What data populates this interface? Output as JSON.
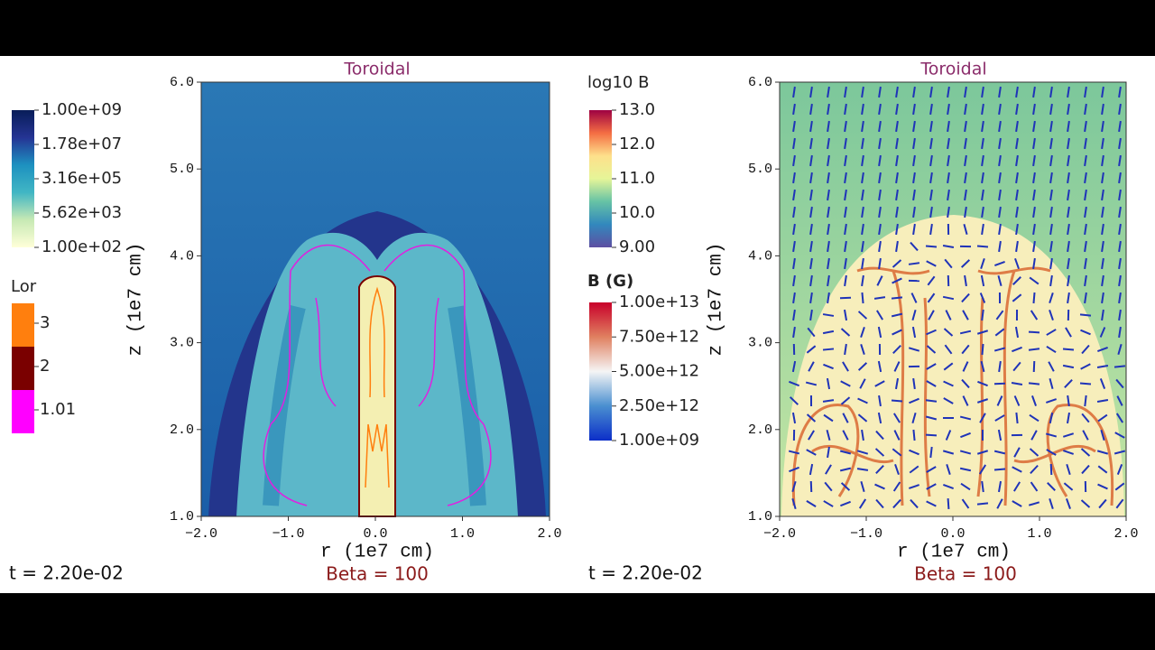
{
  "chart_data": [
    {
      "type": "heatmap",
      "title": "Toroidal",
      "subtitle": "Beta = 100",
      "time_label": "t = 2.20e-02",
      "x_label": "r (1e7 cm)",
      "y_label": "z (1e7 cm)",
      "xlim": [
        -2,
        2
      ],
      "ylim": [
        1,
        6
      ],
      "xticks": [
        {
          "value": -2,
          "label": "−2.0"
        },
        {
          "value": -1,
          "label": "−1.0"
        },
        {
          "value": 0,
          "label": "0.0"
        },
        {
          "value": 1,
          "label": "1.0"
        },
        {
          "value": 2,
          "label": "2.0"
        }
      ],
      "yticks": [
        {
          "value": 1,
          "label": "1.0"
        },
        {
          "value": 2,
          "label": "2.0"
        },
        {
          "value": 3,
          "label": "3.0"
        },
        {
          "value": 4,
          "label": "4.0"
        },
        {
          "value": 5,
          "label": "5.0"
        },
        {
          "value": 6,
          "label": "6.0"
        }
      ],
      "colorbars": [
        {
          "log": true,
          "lim": [
            100,
            1000000000
          ],
          "colors": [
            "#ffffd9",
            "#c7e9b4",
            "#41b6c4",
            "#1d91c0",
            "#253494",
            "#081d58"
          ],
          "ticks": [
            {
              "value": 1000000000,
              "label": "1.00e+09"
            },
            {
              "value": 17800000,
              "label": "1.78e+07"
            },
            {
              "value": 316000,
              "label": "3.16e+05"
            },
            {
              "value": 5620,
              "label": "5.62e+03"
            },
            {
              "value": 100,
              "label": "1.00e+02"
            }
          ]
        }
      ],
      "legend": {
        "title": "Lor",
        "items": [
          {
            "label": "3",
            "color": "#ff7f0e"
          },
          {
            "label": "2",
            "color": "#7a0000"
          },
          {
            "label": "1.01",
            "color": "#ff00ff"
          }
        ]
      }
    },
    {
      "type": "heatmap",
      "title": "Toroidal",
      "subtitle": "Beta = 100",
      "time_label": "t = 2.20e-02",
      "x_label": "r (1e7 cm)",
      "y_label": "z (1e7 cm)",
      "xlim": [
        -2,
        2
      ],
      "ylim": [
        1,
        6
      ],
      "xticks": [
        {
          "value": -2,
          "label": "−2.0"
        },
        {
          "value": -1,
          "label": "−1.0"
        },
        {
          "value": 0,
          "label": "0.0"
        },
        {
          "value": 1,
          "label": "1.0"
        },
        {
          "value": 2,
          "label": "2.0"
        }
      ],
      "yticks": [
        {
          "value": 1,
          "label": "1.0"
        },
        {
          "value": 2,
          "label": "2.0"
        },
        {
          "value": 3,
          "label": "3.0"
        },
        {
          "value": 4,
          "label": "4.0"
        },
        {
          "value": 5,
          "label": "5.0"
        },
        {
          "value": 6,
          "label": "6.0"
        }
      ],
      "colorbars": [
        {
          "title": "log10 B",
          "log": false,
          "lim": [
            9,
            13
          ],
          "colors": [
            "#5e4fa2",
            "#3288bd",
            "#66c2a5",
            "#e6f598",
            "#fee08b",
            "#f46d43",
            "#9e0142"
          ],
          "ticks": [
            {
              "value": 13,
              "label": "13.0"
            },
            {
              "value": 12,
              "label": "12.0"
            },
            {
              "value": 11,
              "label": "11.0"
            },
            {
              "value": 10,
              "label": "10.0"
            },
            {
              "value": 9,
              "label": "9.00"
            }
          ]
        },
        {
          "title": "B (G)",
          "log": false,
          "lim": [
            1000000000,
            10000000000000
          ],
          "colors": [
            "#0c2ec8",
            "#4a8fd0",
            "#f5f5f5",
            "#e08060",
            "#c8002a"
          ],
          "ticks": [
            {
              "value": 10000000000000,
              "label": "1.00e+13"
            },
            {
              "value": 7500000000000,
              "label": "7.50e+12"
            },
            {
              "value": 5000000000000,
              "label": "5.00e+12"
            },
            {
              "value": 2500000000000,
              "label": "2.50e+12"
            },
            {
              "value": 1000000000,
              "label": "1.00e+09"
            }
          ]
        }
      ]
    }
  ]
}
